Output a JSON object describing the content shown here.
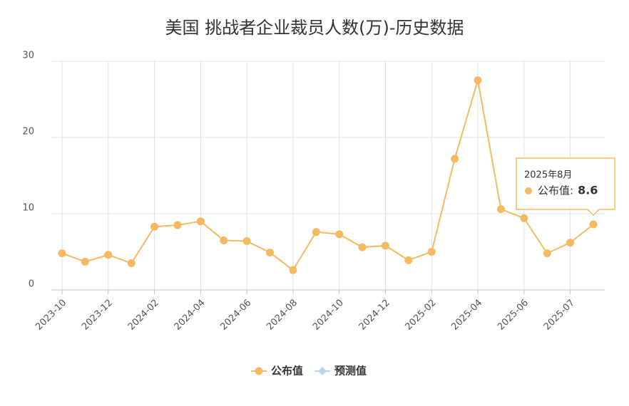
{
  "chart_data": {
    "type": "line",
    "title": "美国 挑战者企业裁员人数(万)-历史数据",
    "categories": [
      "2023-10",
      null,
      "2023-12",
      null,
      "2024-02",
      null,
      "2024-04",
      null,
      "2024-06",
      null,
      "2024-08",
      null,
      "2024-10",
      null,
      "2024-12",
      null,
      "2025-02",
      null,
      "2025-04",
      null,
      "2025-06",
      null,
      "2025-07",
      null
    ],
    "series": [
      {
        "name": "公布值",
        "color": "#f5b961",
        "values": [
          4.8,
          3.7,
          4.6,
          3.5,
          8.3,
          8.5,
          9.0,
          6.5,
          6.4,
          4.9,
          2.6,
          7.6,
          7.3,
          5.6,
          5.8,
          3.9,
          5.0,
          17.2,
          27.5,
          10.6,
          9.4,
          4.8,
          6.2,
          8.6
        ]
      }
    ],
    "legend": [
      {
        "name": "公布值",
        "color": "#f5b961"
      },
      {
        "name": "预测值",
        "color": "#b3d4f2"
      }
    ],
    "ylim": [
      0,
      30
    ],
    "yticks": [
      0,
      10,
      20,
      30
    ],
    "grid": true,
    "tooltip": {
      "title": "2025年8月",
      "label": "公布值:",
      "index": 23
    }
  }
}
